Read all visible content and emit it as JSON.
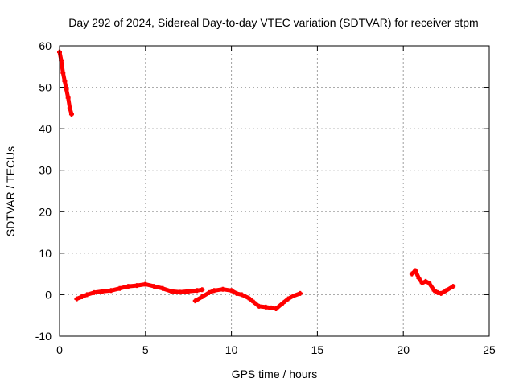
{
  "chart_data": {
    "type": "line",
    "title": "Day 292 of 2024, Sidereal Day-to-day VTEC variation (SDTVAR) for receiver stpm",
    "xlabel": "GPS time / hours",
    "ylabel": "SDTVAR / TECUs",
    "xlim": [
      0,
      25
    ],
    "ylim": [
      -10,
      60
    ],
    "xticks": [
      "0",
      "5",
      "10",
      "15",
      "20",
      "25"
    ],
    "yticks": [
      "-10",
      "0",
      "10",
      "20",
      "30",
      "40",
      "50",
      "60"
    ],
    "grid": true,
    "color": "#ff0000",
    "series": [
      {
        "name": "segment-1",
        "x": [
          0.0,
          0.1,
          0.2,
          0.3,
          0.4,
          0.5,
          0.6,
          0.7
        ],
        "y": [
          58.5,
          56.5,
          53.5,
          51.5,
          49.5,
          47.5,
          45.0,
          43.5
        ]
      },
      {
        "name": "segment-2",
        "x": [
          1.0,
          1.3,
          1.6,
          2.0,
          2.5,
          3.0,
          3.5,
          4.0,
          4.5,
          5.0,
          5.5,
          6.0,
          6.5,
          7.0,
          7.5,
          8.0,
          8.3
        ],
        "y": [
          -1.0,
          -0.5,
          0.0,
          0.5,
          0.8,
          1.0,
          1.5,
          2.0,
          2.2,
          2.5,
          2.0,
          1.5,
          0.8,
          0.6,
          0.8,
          1.0,
          1.2
        ]
      },
      {
        "name": "segment-3",
        "x": [
          7.9,
          8.3,
          8.7,
          9.0,
          9.5,
          10.0,
          10.3,
          10.6,
          11.0,
          11.3,
          11.6,
          12.0,
          12.3,
          12.6,
          13.0,
          13.3,
          13.6,
          14.0
        ],
        "y": [
          -1.5,
          -0.5,
          0.5,
          1.0,
          1.3,
          1.0,
          0.3,
          0.0,
          -0.8,
          -1.8,
          -2.8,
          -3.0,
          -3.2,
          -3.4,
          -2.0,
          -1.0,
          -0.3,
          0.3
        ]
      },
      {
        "name": "segment-4",
        "x": [
          20.5,
          20.7,
          20.9,
          21.1,
          21.3,
          21.5,
          21.8,
          22.0,
          22.2,
          22.5,
          22.9
        ],
        "y": [
          5.0,
          5.8,
          4.0,
          2.8,
          3.2,
          2.8,
          1.0,
          0.5,
          0.3,
          1.0,
          2.0
        ]
      }
    ]
  }
}
